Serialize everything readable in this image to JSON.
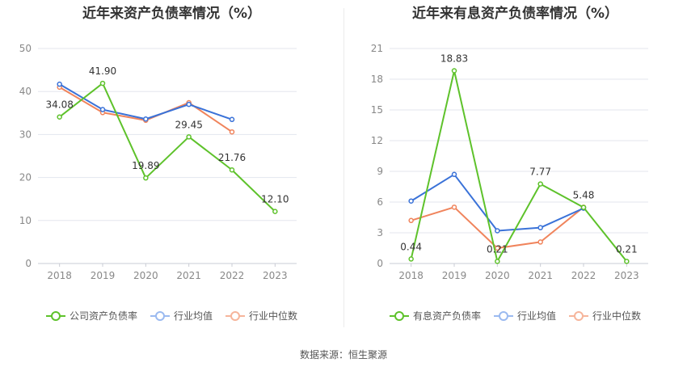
{
  "colors": {
    "company": "#5ec22b",
    "industry_avg": "#3a72d8",
    "industry_median": "#f0845c",
    "grid": "#e3e6ee",
    "axis_text": "#888888",
    "label_text": "#333333"
  },
  "charts": [
    {
      "title": "近年来资产负债率情况（%）",
      "legend": [
        "公司资产负债率",
        "行业均值",
        "行业中位数"
      ]
    },
    {
      "title": "近年来有息资产负债率情况（%）",
      "legend": [
        "有息资产负债率",
        "行业均值",
        "行业中位数"
      ]
    }
  ],
  "chart_data": [
    {
      "type": "line",
      "title": "近年来资产负债率情况（%）",
      "categories": [
        "2018",
        "2019",
        "2020",
        "2021",
        "2022",
        "2023"
      ],
      "ylim": [
        0,
        50
      ],
      "yticks": [
        0,
        10,
        20,
        30,
        40,
        50
      ],
      "grid": true,
      "legend_position": "bottom",
      "series": [
        {
          "name": "公司资产负债率",
          "values": [
            34.08,
            41.9,
            19.89,
            29.45,
            21.76,
            12.1
          ],
          "labels": [
            "34.08",
            "41.90",
            "19.89",
            "29.45",
            "21.76",
            "12.10"
          ]
        },
        {
          "name": "行业均值",
          "values": [
            41.7,
            35.8,
            33.6,
            37.0,
            33.5,
            null
          ]
        },
        {
          "name": "行业中位数",
          "values": [
            41.0,
            35.1,
            33.3,
            37.4,
            30.6,
            null
          ]
        }
      ]
    },
    {
      "type": "line",
      "title": "近年来有息资产负债率情况（%）",
      "categories": [
        "2018",
        "2019",
        "2020",
        "2021",
        "2022",
        "2023"
      ],
      "ylim": [
        0,
        21
      ],
      "yticks": [
        0,
        3,
        6,
        9,
        12,
        15,
        18,
        21
      ],
      "grid": true,
      "legend_position": "bottom",
      "series": [
        {
          "name": "有息资产负债率",
          "values": [
            0.44,
            18.83,
            0.21,
            7.77,
            5.48,
            0.21
          ],
          "labels": [
            "0.44",
            "18.83",
            "0.21",
            "7.77",
            "5.48",
            "0.21"
          ]
        },
        {
          "name": "行业均值",
          "values": [
            6.1,
            8.7,
            3.2,
            3.5,
            5.4,
            null
          ]
        },
        {
          "name": "行业中位数",
          "values": [
            4.2,
            5.5,
            1.5,
            2.1,
            5.5,
            null
          ]
        }
      ]
    }
  ],
  "footer": {
    "source": "数据来源：恒生聚源"
  }
}
